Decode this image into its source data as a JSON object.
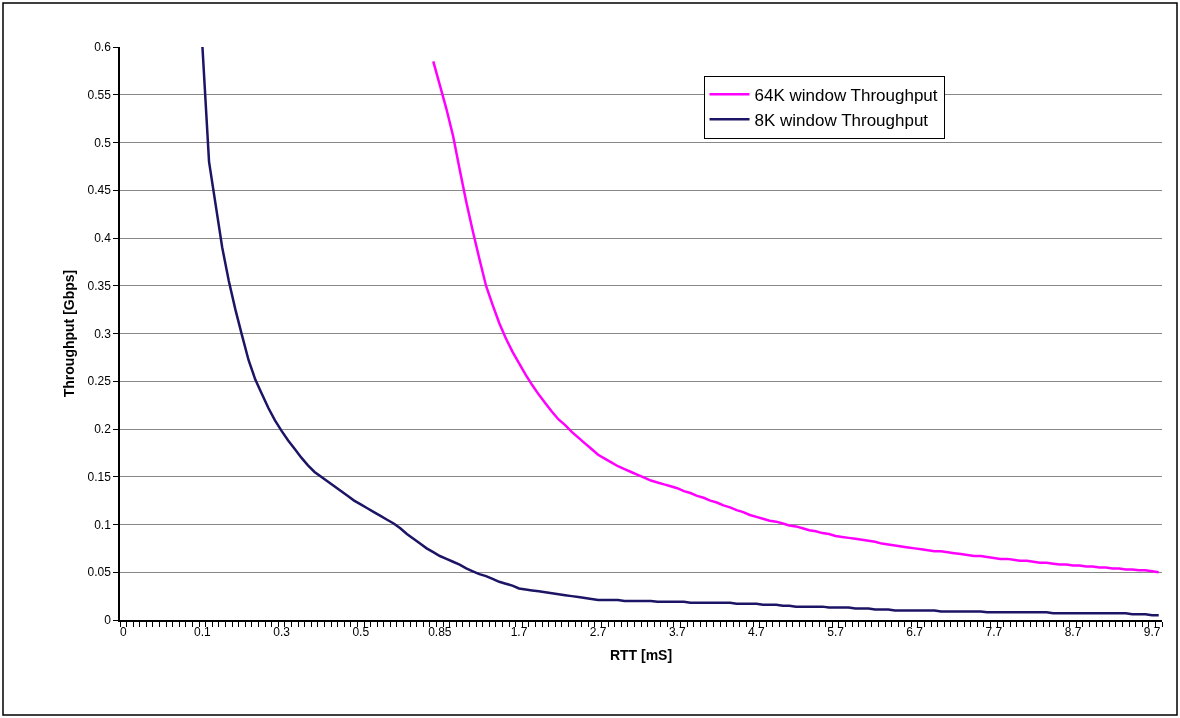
{
  "chart_data": {
    "type": "line",
    "xlabel": "RTT [mS]",
    "ylabel": "Throughput [Gbps]",
    "categories": [
      "0",
      null,
      null,
      null,
      null,
      null,
      null,
      null,
      null,
      null,
      null,
      null,
      "0.1",
      null,
      null,
      null,
      null,
      null,
      null,
      null,
      null,
      null,
      null,
      null,
      "0.3",
      null,
      null,
      null,
      null,
      null,
      null,
      null,
      null,
      null,
      null,
      null,
      "0.5",
      null,
      null,
      null,
      null,
      null,
      null,
      null,
      null,
      null,
      null,
      null,
      "0.85",
      null,
      null,
      null,
      null,
      null,
      null,
      null,
      null,
      null,
      null,
      null,
      "1.7",
      null,
      null,
      null,
      null,
      null,
      null,
      null,
      null,
      null,
      null,
      null,
      "2.7",
      null,
      null,
      null,
      null,
      null,
      null,
      null,
      null,
      null,
      null,
      null,
      "3.7",
      null,
      null,
      null,
      null,
      null,
      null,
      null,
      null,
      null,
      null,
      null,
      "4.7",
      null,
      null,
      null,
      null,
      null,
      null,
      null,
      null,
      null,
      null,
      null,
      "5.7",
      null,
      null,
      null,
      null,
      null,
      null,
      null,
      null,
      null,
      null,
      null,
      "6.7",
      null,
      null,
      null,
      null,
      null,
      null,
      null,
      null,
      null,
      null,
      null,
      "7.7",
      null,
      null,
      null,
      null,
      null,
      null,
      null,
      null,
      null,
      null,
      null,
      "8.7",
      null,
      null,
      null,
      null,
      null,
      null,
      null,
      null,
      null,
      null,
      null,
      "9.7",
      null
    ],
    "series": [
      {
        "name": "64K window Throughput",
        "color": "#ff00ff",
        "values": [
          null,
          null,
          null,
          null,
          null,
          null,
          null,
          null,
          null,
          null,
          null,
          null,
          null,
          null,
          null,
          null,
          null,
          null,
          null,
          null,
          null,
          null,
          null,
          null,
          null,
          null,
          null,
          null,
          null,
          null,
          null,
          null,
          null,
          null,
          null,
          null,
          null,
          null,
          null,
          null,
          null,
          null,
          null,
          null,
          null,
          null,
          null,
          0.585,
          0.56,
          0.535,
          0.507,
          0.472,
          0.438,
          0.407,
          0.378,
          0.35,
          0.33,
          0.311,
          0.295,
          0.281,
          0.269,
          0.257,
          0.246,
          0.236,
          0.227,
          0.218,
          0.21,
          0.204,
          0.197,
          0.191,
          0.185,
          0.179,
          0.173,
          0.169,
          0.165,
          0.161,
          0.158,
          0.155,
          0.152,
          0.149,
          0.146,
          0.144,
          0.142,
          0.14,
          0.138,
          0.135,
          0.133,
          0.13,
          0.128,
          0.125,
          0.123,
          0.12,
          0.118,
          0.115,
          0.113,
          0.11,
          0.108,
          0.106,
          0.104,
          0.103,
          0.101,
          0.099,
          0.098,
          0.096,
          0.094,
          0.093,
          0.091,
          0.09,
          0.088,
          0.087,
          0.086,
          0.085,
          0.084,
          0.083,
          0.082,
          0.08,
          0.079,
          0.078,
          0.077,
          0.076,
          0.075,
          0.074,
          0.073,
          0.072,
          0.072,
          0.071,
          0.07,
          0.069,
          0.068,
          0.067,
          0.067,
          0.066,
          0.065,
          0.064,
          0.064,
          0.063,
          0.062,
          0.062,
          0.061,
          0.06,
          0.06,
          0.059,
          0.058,
          0.058,
          0.057,
          0.057,
          0.056,
          0.056,
          0.055,
          0.055,
          0.054,
          0.054,
          0.053,
          0.053,
          0.052,
          0.052,
          0.051,
          0.05
        ]
      },
      {
        "name": "8K window Throughput",
        "color": "#1c1464",
        "values": [
          null,
          null,
          null,
          null,
          null,
          null,
          null,
          null,
          null,
          null,
          null,
          null,
          0.6,
          0.48,
          0.435,
          0.39,
          0.355,
          0.325,
          0.298,
          0.272,
          0.252,
          0.237,
          0.222,
          0.209,
          0.198,
          0.188,
          0.179,
          0.17,
          0.162,
          0.155,
          0.15,
          0.145,
          0.14,
          0.135,
          0.13,
          0.125,
          0.121,
          0.117,
          0.113,
          0.109,
          0.105,
          0.101,
          0.096,
          0.09,
          0.085,
          0.08,
          0.075,
          0.071,
          0.067,
          0.064,
          0.061,
          0.058,
          0.054,
          0.051,
          0.048,
          0.046,
          0.043,
          0.04,
          0.038,
          0.036,
          0.033,
          0.032,
          0.031,
          0.03,
          0.029,
          0.028,
          0.027,
          0.026,
          0.025,
          0.024,
          0.023,
          0.022,
          0.021,
          0.021,
          0.021,
          0.021,
          0.02,
          0.02,
          0.02,
          0.02,
          0.02,
          0.019,
          0.019,
          0.019,
          0.019,
          0.019,
          0.018,
          0.018,
          0.018,
          0.018,
          0.018,
          0.018,
          0.018,
          0.017,
          0.017,
          0.017,
          0.017,
          0.016,
          0.016,
          0.016,
          0.015,
          0.015,
          0.014,
          0.014,
          0.014,
          0.014,
          0.014,
          0.013,
          0.013,
          0.013,
          0.013,
          0.012,
          0.012,
          0.012,
          0.011,
          0.011,
          0.011,
          0.01,
          0.01,
          0.01,
          0.01,
          0.01,
          0.01,
          0.01,
          0.009,
          0.009,
          0.009,
          0.009,
          0.009,
          0.009,
          0.009,
          0.008,
          0.008,
          0.008,
          0.008,
          0.008,
          0.008,
          0.008,
          0.008,
          0.008,
          0.008,
          0.007,
          0.007,
          0.007,
          0.007,
          0.007,
          0.007,
          0.007,
          0.007,
          0.007,
          0.007,
          0.007,
          0.007,
          0.006,
          0.006,
          0.006,
          0.005,
          0.005
        ]
      }
    ],
    "ylim": [
      0,
      0.6
    ],
    "yticks": [
      0,
      0.05,
      0.1,
      0.15,
      0.2,
      0.25,
      0.3,
      0.35,
      0.4,
      0.45,
      0.5,
      0.55,
      0.6
    ],
    "grid": "y",
    "legend": "top right",
    "marker": "none",
    "line_style": "solid"
  }
}
